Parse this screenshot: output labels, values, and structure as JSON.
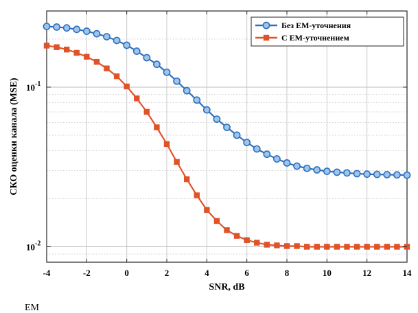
{
  "chart_data": {
    "type": "line",
    "title": "",
    "xlabel": "SNR, dB",
    "ylabel": "СКО оценки канала (MSE)",
    "yscale": "log",
    "xlim": [
      -4,
      14
    ],
    "ylim": [
      0.008,
      0.3
    ],
    "grid": true,
    "legend_position": "top-right",
    "x_ticks": [
      "-4",
      "-2",
      "0",
      "2",
      "4",
      "6",
      "8",
      "10",
      "12",
      "14"
    ],
    "y_ticks": [
      {
        "base": "10",
        "exp": "-1"
      },
      {
        "base": "10",
        "exp": "-2"
      }
    ],
    "x": [
      -4,
      -3.5,
      -3,
      -2.5,
      -2,
      -1.5,
      -1,
      -0.5,
      0,
      0.5,
      1,
      1.5,
      2,
      2.5,
      3,
      3.5,
      4,
      4.5,
      5,
      5.5,
      6,
      6.5,
      7,
      7.5,
      8,
      8.5,
      9,
      9.5,
      10,
      10.5,
      11,
      11.5,
      12,
      12.5,
      13,
      13.5,
      14
    ],
    "series": [
      {
        "name": "Без ЕМ-уточнения",
        "color": "#2e6fbf",
        "marker": "circle",
        "values": [
          0.24,
          0.238,
          0.235,
          0.23,
          0.224,
          0.216,
          0.207,
          0.196,
          0.183,
          0.168,
          0.153,
          0.139,
          0.124,
          0.109,
          0.095,
          0.083,
          0.072,
          0.063,
          0.056,
          0.05,
          0.045,
          0.041,
          0.038,
          0.0355,
          0.0335,
          0.032,
          0.031,
          0.0303,
          0.0297,
          0.0293,
          0.029,
          0.0287,
          0.0285,
          0.0284,
          0.0283,
          0.0282,
          0.0281
        ]
      },
      {
        "name": "С ЕМ-уточнением",
        "color": "#e05328",
        "marker": "square",
        "values": [
          0.182,
          0.178,
          0.172,
          0.164,
          0.155,
          0.144,
          0.131,
          0.117,
          0.101,
          0.085,
          0.07,
          0.056,
          0.044,
          0.034,
          0.0265,
          0.021,
          0.017,
          0.0145,
          0.0127,
          0.0117,
          0.011,
          0.0106,
          0.0103,
          0.0102,
          0.0101,
          0.0101,
          0.01,
          0.01,
          0.01,
          0.01,
          0.01,
          0.01,
          0.01,
          0.01,
          0.01,
          0.01,
          0.01
        ]
      }
    ]
  },
  "footer_text": "EM"
}
